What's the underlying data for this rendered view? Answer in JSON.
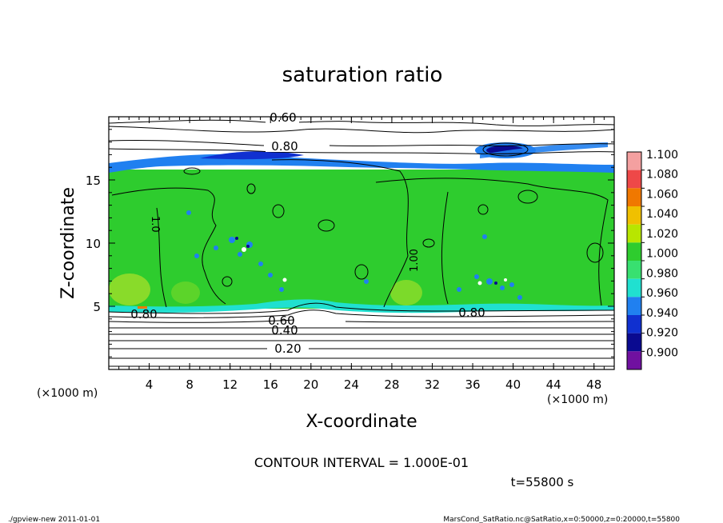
{
  "chart_data": {
    "type": "heatmap",
    "title": "saturation ratio",
    "xlabel": "X-coordinate",
    "ylabel": "Z-coordinate",
    "x_unit": "(×1000 m)",
    "y_unit": "(×1000 m)",
    "xlim": [
      0,
      50
    ],
    "ylim": [
      0,
      20
    ],
    "x_ticks": [
      "4",
      "8",
      "12",
      "16",
      "20",
      "24",
      "28",
      "32",
      "36",
      "40",
      "44",
      "48"
    ],
    "y_ticks": [
      "5",
      "10",
      "15"
    ],
    "colorbar_labels": [
      "1.100",
      "1.080",
      "1.060",
      "1.040",
      "1.020",
      "1.000",
      "0.980",
      "0.960",
      "0.940",
      "0.920",
      "0.900"
    ],
    "colorbar_colors": [
      "#f4a0a0",
      "#ee4848",
      "#f07800",
      "#f0c000",
      "#b8e600",
      "#2ecc2e",
      "#38e070",
      "#20e0d0",
      "#2080f0",
      "#1030d0",
      "#0a0a90",
      "#7010a0"
    ],
    "contour_labels": [
      "0.60",
      "0.80",
      "0.20",
      "0.40",
      "0.60",
      "0.80",
      "0.80",
      "1.0",
      "1.00"
    ],
    "contour_interval_text": "CONTOUR INTERVAL = 1.000E-01",
    "time_text": "t=55800 s",
    "grid": false
  },
  "footer": {
    "left": "./gpview-new   2011-01-01",
    "right": "MarsCond_SatRatio.nc@SatRatio,x=0:50000,z=0:20000,t=55800"
  }
}
